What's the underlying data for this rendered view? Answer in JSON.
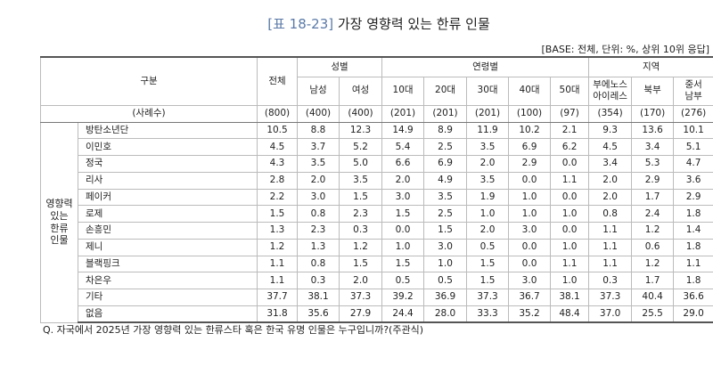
{
  "title": {
    "label": "[표 18-23]",
    "text": "가장 영향력 있는 한류 인물"
  },
  "base_note": "[BASE: 전체, 단위: %, 상위 10위 응답]",
  "table": {
    "header": {
      "section": "구분",
      "total": "전체",
      "groups": [
        {
          "label": "성별",
          "cols": [
            "남성",
            "여성"
          ]
        },
        {
          "label": "연령별",
          "cols": [
            "10대",
            "20대",
            "30대",
            "40대",
            "50대"
          ]
        },
        {
          "label": "지역",
          "cols": [
            "부에노스\n아이레스",
            "북부",
            "중서\n남부"
          ]
        }
      ]
    },
    "sample_row": {
      "label": "(사례수)",
      "values": [
        "(800)",
        "(400)",
        "(400)",
        "(201)",
        "(201)",
        "(201)",
        "(100)",
        "(97)",
        "(354)",
        "(170)",
        "(276)"
      ]
    },
    "row_group": "영향력\n있는\n한류\n인물",
    "rows": [
      {
        "label": "방탄소년단",
        "values": [
          "10.5",
          "8.8",
          "12.3",
          "14.9",
          "8.9",
          "11.9",
          "10.2",
          "2.1",
          "9.3",
          "13.6",
          "10.1"
        ]
      },
      {
        "label": "이민호",
        "values": [
          "4.5",
          "3.7",
          "5.2",
          "5.4",
          "2.5",
          "3.5",
          "6.9",
          "6.2",
          "4.5",
          "3.4",
          "5.1"
        ]
      },
      {
        "label": "정국",
        "values": [
          "4.3",
          "3.5",
          "5.0",
          "6.6",
          "6.9",
          "2.0",
          "2.9",
          "0.0",
          "3.4",
          "5.3",
          "4.7"
        ]
      },
      {
        "label": "리사",
        "values": [
          "2.8",
          "2.0",
          "3.5",
          "2.0",
          "4.9",
          "3.5",
          "0.0",
          "1.1",
          "2.0",
          "2.9",
          "3.6"
        ]
      },
      {
        "label": "페이커",
        "values": [
          "2.2",
          "3.0",
          "1.5",
          "3.0",
          "3.5",
          "1.9",
          "1.0",
          "0.0",
          "2.0",
          "1.7",
          "2.9"
        ]
      },
      {
        "label": "로제",
        "values": [
          "1.5",
          "0.8",
          "2.3",
          "1.5",
          "2.5",
          "1.0",
          "1.0",
          "1.0",
          "0.8",
          "2.4",
          "1.8"
        ]
      },
      {
        "label": "손흥민",
        "values": [
          "1.3",
          "2.3",
          "0.3",
          "0.0",
          "1.5",
          "2.0",
          "3.0",
          "0.0",
          "1.1",
          "1.2",
          "1.4"
        ]
      },
      {
        "label": "제니",
        "values": [
          "1.2",
          "1.3",
          "1.2",
          "1.0",
          "3.0",
          "0.5",
          "0.0",
          "1.0",
          "1.1",
          "0.6",
          "1.8"
        ]
      },
      {
        "label": "블랙핑크",
        "values": [
          "1.1",
          "0.8",
          "1.5",
          "1.5",
          "1.0",
          "1.5",
          "0.0",
          "1.1",
          "1.1",
          "1.2",
          "1.1"
        ]
      },
      {
        "label": "차은우",
        "values": [
          "1.1",
          "0.3",
          "2.0",
          "0.5",
          "0.5",
          "1.5",
          "3.0",
          "1.0",
          "0.3",
          "1.7",
          "1.8"
        ]
      },
      {
        "label": "기타",
        "values": [
          "37.7",
          "38.1",
          "37.3",
          "39.2",
          "36.9",
          "37.3",
          "36.7",
          "38.1",
          "37.3",
          "40.4",
          "36.6"
        ]
      },
      {
        "label": "없음",
        "values": [
          "31.8",
          "35.6",
          "27.9",
          "24.4",
          "28.0",
          "33.3",
          "35.2",
          "48.4",
          "37.0",
          "25.5",
          "29.0"
        ]
      }
    ]
  },
  "footnote": "Q. 자국에서 2025년 가장 영향력 있는 한류스타 혹은 한국 유명 인물은 누구입니까?(주관식)"
}
